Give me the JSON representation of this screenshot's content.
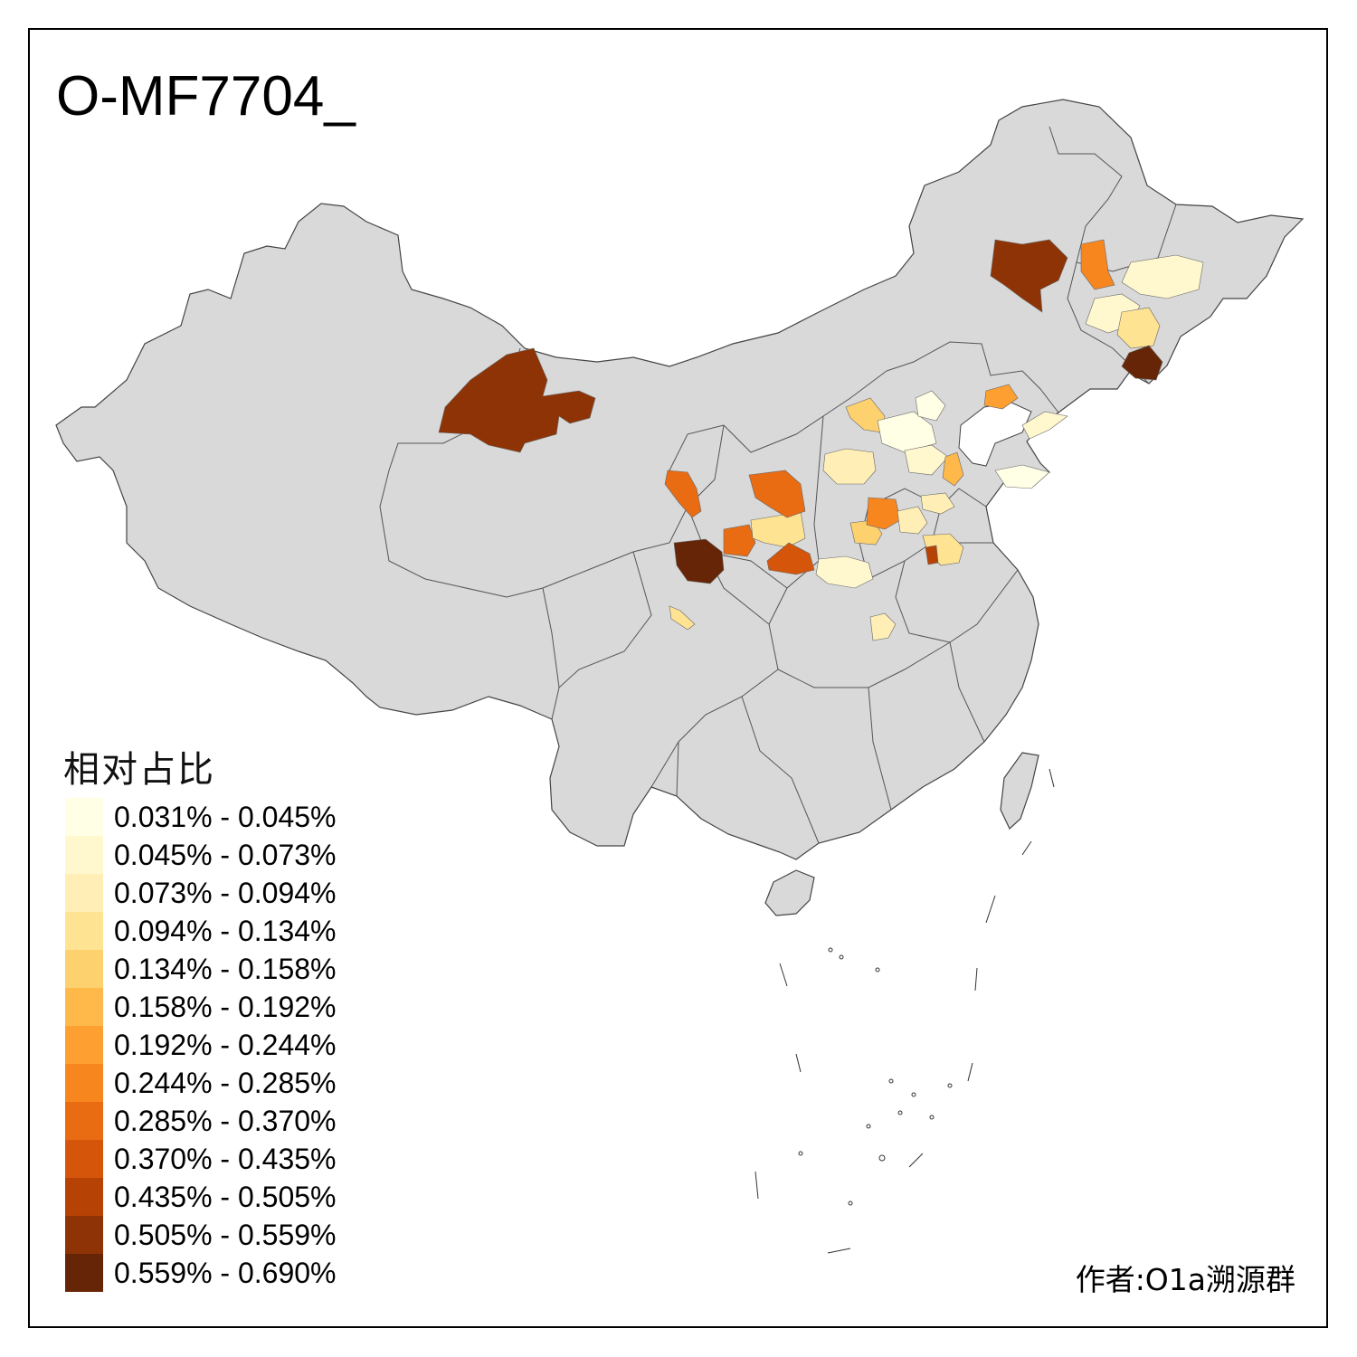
{
  "title": "O-MF7704_",
  "legend": {
    "title": "相对占比",
    "items": [
      {
        "label": "0.031% - 0.045%",
        "color": "#FFFFE5"
      },
      {
        "label": "0.045% - 0.073%",
        "color": "#FFF8CF"
      },
      {
        "label": "0.073% - 0.094%",
        "color": "#FFEFB6"
      },
      {
        "label": "0.094% - 0.134%",
        "color": "#FEE393"
      },
      {
        "label": "0.134% - 0.158%",
        "color": "#FED16F"
      },
      {
        "label": "0.158% - 0.192%",
        "color": "#FEB94A"
      },
      {
        "label": "0.192% - 0.244%",
        "color": "#FDA031"
      },
      {
        "label": "0.244% - 0.285%",
        "color": "#F8861F"
      },
      {
        "label": "0.285% - 0.370%",
        "color": "#E96C13"
      },
      {
        "label": "0.370% - 0.435%",
        "color": "#D5550A"
      },
      {
        "label": "0.435% - 0.505%",
        "color": "#B74205"
      },
      {
        "label": "0.505% - 0.559%",
        "color": "#8E3305"
      },
      {
        "label": "0.559% - 0.690%",
        "color": "#662506"
      }
    ]
  },
  "map": {
    "base_color": "#D9D9D9",
    "border_color": "#555555"
  },
  "credit": "作者:O1a溯源群"
}
